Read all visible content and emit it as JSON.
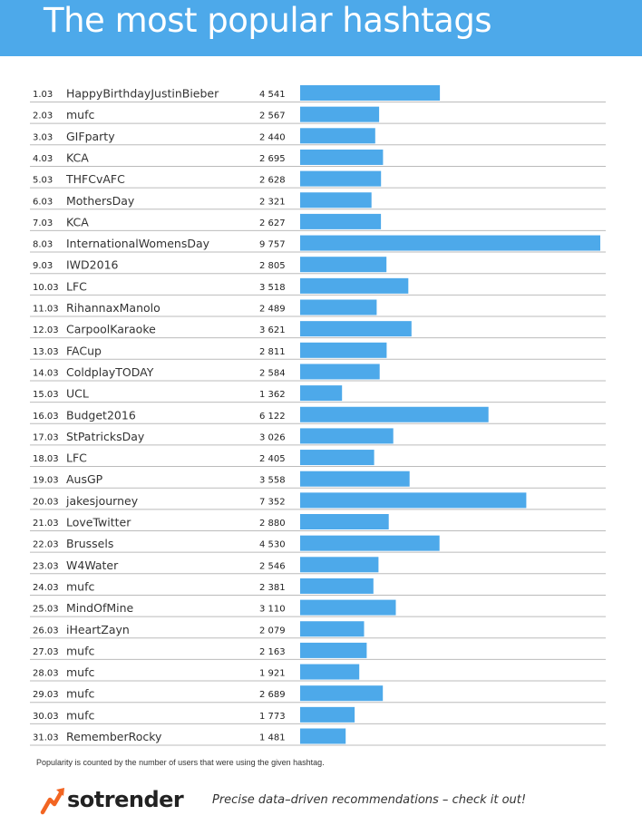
{
  "header": {
    "title": "The most popular hashtags"
  },
  "colors": {
    "bar": "#4da9ea",
    "header_bg": "#4da9ea",
    "row_line": "#bbbbbb",
    "logo_accent": "#f26522"
  },
  "chart_data": {
    "type": "bar",
    "orientation": "horizontal",
    "title": "The most popular hashtags",
    "dates": [
      "1.03",
      "2.03",
      "3.03",
      "4.03",
      "5.03",
      "6.03",
      "7.03",
      "8.03",
      "9.03",
      "10.03",
      "11.03",
      "12.03",
      "13.03",
      "14.03",
      "15.03",
      "16.03",
      "17.03",
      "18.03",
      "19.03",
      "20.03",
      "21.03",
      "22.03",
      "23.03",
      "24.03",
      "25.03",
      "26.03",
      "27.03",
      "28.03",
      "29.03",
      "30.03",
      "31.03"
    ],
    "categories": [
      "HappyBirthdayJustinBieber",
      "mufc",
      "GIFparty",
      "KCA",
      "THFCvAFC",
      "MothersDay",
      "KCA",
      "InternationalWomensDay",
      "IWD2016",
      "LFC",
      "RihannaxManolo",
      "CarpoolKaraoke",
      "FACup",
      "ColdplayTODAY",
      "UCL",
      "Budget2016",
      "StPatricksDay",
      "LFC",
      "AusGP",
      "jakesjourney",
      "LoveTwitter",
      "Brussels",
      "W4Water",
      "mufc",
      "MindOfMine",
      "iHeartZayn",
      "mufc",
      "mufc",
      "mufc",
      "mufc",
      "RememberRocky"
    ],
    "values": [
      4541,
      2567,
      2440,
      2695,
      2628,
      2321,
      2627,
      9757,
      2805,
      3518,
      2489,
      3621,
      2811,
      2584,
      1362,
      6122,
      3026,
      2405,
      3558,
      7352,
      2880,
      4530,
      2546,
      2381,
      3110,
      2079,
      2163,
      1921,
      2689,
      1773,
      1481
    ],
    "value_labels": [
      "4 541",
      "2 567",
      "2 440",
      "2 695",
      "2 628",
      "2 321",
      "2 627",
      "9 757",
      "2 805",
      "3 518",
      "2 489",
      "3 621",
      "2 811",
      "2 584",
      "1 362",
      "6 122",
      "3 026",
      "2 405",
      "3 558",
      "7 352",
      "2 880",
      "4 530",
      "2 546",
      "2 381",
      "3 110",
      "2 079",
      "2 163",
      "1 921",
      "2 689",
      "1 773",
      "1 481"
    ],
    "xlim": [
      0,
      9757
    ]
  },
  "footnote": "Popularity is counted by the number of users that were using the given hashtag.",
  "footer": {
    "brand": "sotrender",
    "tagline": "Precise data–driven recommendations – check it out!"
  }
}
